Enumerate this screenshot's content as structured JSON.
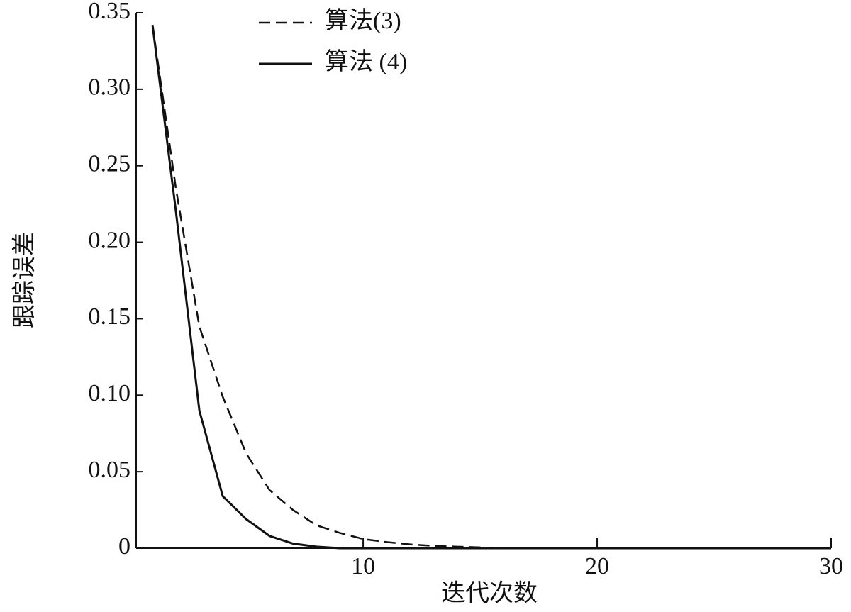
{
  "chart_data": {
    "type": "line",
    "xlabel": "迭代次数",
    "ylabel": "跟踪误差",
    "x": [
      1,
      2,
      3,
      4,
      5,
      6,
      7,
      8,
      9,
      10,
      11,
      12,
      13,
      14,
      15,
      16,
      17,
      18,
      19,
      20,
      21,
      22,
      23,
      24,
      25,
      26,
      27,
      28,
      29,
      30
    ],
    "series": [
      {
        "name": "算法(3)",
        "color": "#111111",
        "dash": true,
        "values": [
          0.342,
          0.235,
          0.145,
          0.099,
          0.062,
          0.038,
          0.025,
          0.015,
          0.01,
          0.006,
          0.004,
          0.0025,
          0.0015,
          0.001,
          0.0005,
          0,
          0,
          0,
          0,
          0,
          0,
          0,
          0,
          0,
          0,
          0,
          0,
          0,
          0,
          0
        ]
      },
      {
        "name": "算法 (4)",
        "color": "#111111",
        "dash": false,
        "values": [
          0.342,
          0.22,
          0.09,
          0.034,
          0.019,
          0.008,
          0.003,
          0.001,
          0,
          0,
          0,
          0,
          0,
          0,
          0,
          0,
          0,
          0,
          0,
          0,
          0,
          0,
          0,
          0,
          0,
          0,
          0,
          0,
          0,
          0
        ]
      }
    ],
    "xlim": [
      0.3,
      30
    ],
    "xticks": [
      10,
      20,
      30
    ],
    "ylim": [
      0,
      0.35
    ],
    "yticks": [
      0,
      0.05,
      {
        "value": 0.1,
        "label": "0.10"
      },
      0.15,
      {
        "value": 0.2,
        "label": "0.20"
      },
      0.25,
      {
        "value": 0.3,
        "label": "0.30"
      },
      0.35
    ],
    "legend": "top-left"
  }
}
